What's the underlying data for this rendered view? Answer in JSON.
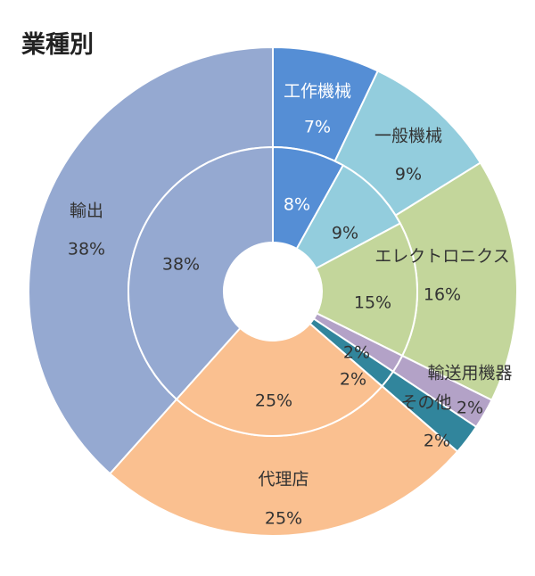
{
  "chart_data": {
    "type": "pie",
    "subtype": "double-doughnut",
    "title": "業種別",
    "categories": [
      "工作機械",
      "一般機械",
      "エレクトロニクス",
      "輸送用機器",
      "その他",
      "代理店",
      "輸出"
    ],
    "colors": [
      "#558ED5",
      "#93CDDD",
      "#C3D69B",
      "#B3A2C7",
      "#31859C",
      "#FAC090",
      "#95A9D1"
    ],
    "series": [
      {
        "ring": "outer",
        "values": [
          7,
          9,
          16,
          2,
          2,
          25,
          38
        ],
        "labels": [
          "7%",
          "9%",
          "16%",
          "2%",
          "2%",
          "25%",
          "38%"
        ]
      },
      {
        "ring": "inner",
        "values": [
          8,
          9,
          15,
          2,
          2,
          25,
          38
        ],
        "labels": [
          "8%",
          "9%",
          "15%",
          "2%",
          "2%",
          "25%",
          "38%"
        ]
      }
    ]
  }
}
